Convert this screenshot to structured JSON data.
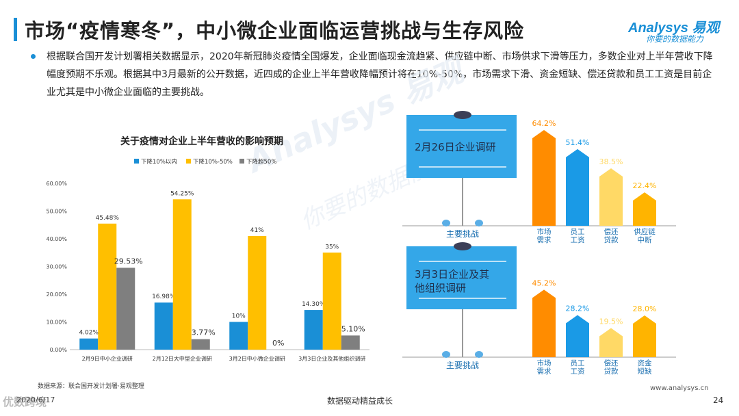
{
  "header": {
    "title": "市场“疫情寒冬”，中小微企业面临运营挑战与生存风险",
    "logo_main": "Analysys 易观",
    "logo_sub": "你要的数据能力",
    "brand_color": "#1a8fd6"
  },
  "body_text": "根据联合国开发计划署相关数据显示，2020年新冠肺炎疫情全国爆发，企业面临现金流趋紧、供应链中断、市场供求下滑等压力，多数企业对上半年营收下降幅度预期不乐观。根据其中3月最新的公开数据，近四成的企业上半年营收降幅预计将在10%-50%，市场需求下滑、资金短缺、偿还贷款和员工工资是目前企业尤其是中小微企业面临的主要挑战。",
  "watermark": {
    "line1": "Analysys 易观",
    "line2": "你要的数据能力"
  },
  "footer": {
    "source": "数据来源：联合国开发计划署·易观整理",
    "date": "2020/6/17",
    "slogan": "数据驱动精益成长",
    "url": "www.analysys.cn",
    "page": "24",
    "corner": "优数跨境"
  },
  "chart_data": [
    {
      "type": "bar",
      "title": "关于疫情对企业上半年营收的影响预期",
      "categories": [
        "2月9日中小企业调研",
        "2月12日大中型企业调研",
        "3月2日中小微企业调研",
        "3月3日企业及其他组织调研"
      ],
      "series": [
        {
          "name": "下降10%以内",
          "color": "#1a8fd6",
          "values": [
            4.02,
            16.98,
            10,
            14.3
          ],
          "labels": [
            "4.02%",
            "16.98%",
            "10%",
            "14.30%"
          ]
        },
        {
          "name": "下降10%-50%",
          "color": "#ffbf00",
          "values": [
            45.48,
            54.25,
            41,
            35
          ],
          "labels": [
            "45.48%",
            "54.25%",
            "41%",
            "35%"
          ]
        },
        {
          "name": "下降超50%",
          "color": "#7f7f7f",
          "values": [
            29.53,
            3.77,
            0,
            5.1
          ],
          "labels": [
            "29.53%",
            "3.77%",
            "0%",
            "5.10%"
          ]
        }
      ],
      "ylim": [
        0,
        60
      ],
      "yticks": [
        "0.00%",
        "10.00%",
        "20.00%",
        "30.00%",
        "40.00%",
        "50.00%",
        "60.00%"
      ],
      "legend": "top"
    },
    {
      "type": "bar",
      "title": "2月26日企业调研",
      "xlabel": "主要挑战",
      "categories": [
        "市场需求",
        "员工工资",
        "偿还贷款",
        "供应链中断"
      ],
      "category_lines": [
        [
          "市场",
          "需求"
        ],
        [
          "员工",
          "工资"
        ],
        [
          "偿还",
          "贷款"
        ],
        [
          "供应链",
          "中断"
        ]
      ],
      "values": [
        64.2,
        51.4,
        38.5,
        22.4
      ],
      "labels": [
        "64.2%",
        "51.4%",
        "38.5%",
        "22.4%"
      ],
      "colors": [
        "#ff8c00",
        "#1a9ae6",
        "#ffd966",
        "#ffb400"
      ]
    },
    {
      "type": "bar",
      "title": "3月3日企业及其他组织调研",
      "title_lines": [
        "3月3日企业及其",
        "他组织调研"
      ],
      "xlabel": "主要挑战",
      "categories": [
        "市场需求",
        "员工工资",
        "偿还贷款",
        "资金短缺"
      ],
      "category_lines": [
        [
          "市场",
          "需求"
        ],
        [
          "员工",
          "工资"
        ],
        [
          "偿还",
          "贷款"
        ],
        [
          "资金",
          "短缺"
        ]
      ],
      "values": [
        45.2,
        28.2,
        19.5,
        28.0
      ],
      "labels": [
        "45.2%",
        "28.2%",
        "19.5%",
        "28.0%"
      ],
      "colors": [
        "#ff8c00",
        "#1a9ae6",
        "#ffd966",
        "#ffb400"
      ]
    }
  ]
}
